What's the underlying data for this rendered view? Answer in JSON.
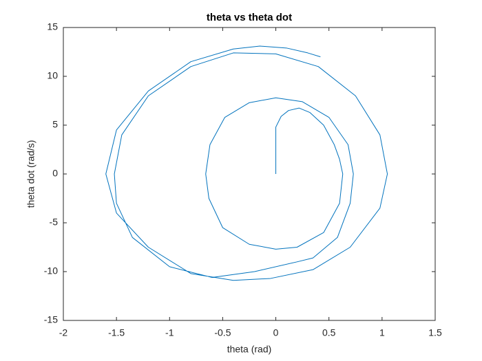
{
  "chart_data": {
    "type": "line",
    "title": "theta vs theta dot",
    "x_label": "theta (rad)",
    "y_label": "theta dot (rad/s)",
    "x": [
      0,
      0,
      0.05,
      0.12,
      0.22,
      0.32,
      0.45,
      0.55,
      0.6,
      0.63,
      0.6,
      0.45,
      0.2,
      0,
      -0.25,
      -0.5,
      -0.63,
      -0.66,
      -0.62,
      -0.48,
      -0.25,
      0,
      0.25,
      0.5,
      0.68,
      0.73,
      0.7,
      0.58,
      0.35,
      0.2,
      -0.2,
      -0.6,
      -1,
      -1.35,
      -1.5,
      -1.52,
      -1.45,
      -1.2,
      -0.8,
      -0.4,
      0,
      0.4,
      0.75,
      0.98,
      1.05,
      0.98,
      0.7,
      0.35,
      -0.05,
      -0.4,
      -0.8,
      -1.2,
      -1.5,
      -1.6,
      -1.5,
      -1.2,
      -0.8,
      -0.4,
      -0.15,
      0.1,
      0.3,
      0.42
    ],
    "series": [
      {
        "name": "theta dot",
        "color": "#0072bd",
        "values": [
          0,
          4.8,
          5.9,
          6.5,
          6.75,
          6.3,
          5,
          3,
          1.5,
          0,
          -3,
          -6,
          -7.5,
          -7.7,
          -7.2,
          -5.5,
          -2.5,
          0,
          3,
          5.8,
          7.3,
          7.8,
          7.4,
          5.8,
          3,
          0,
          -3,
          -6.5,
          -8.6,
          -9,
          -10,
          -10.6,
          -9.5,
          -6.5,
          -3,
          0,
          4,
          8,
          11,
          12.4,
          12.3,
          11,
          8,
          4,
          0,
          -3.5,
          -7.5,
          -9.8,
          -10.7,
          -10.9,
          -10.2,
          -7.5,
          -4,
          0,
          4.5,
          8.5,
          11.5,
          12.8,
          13.1,
          12.9,
          12.4,
          12
        ]
      }
    ],
    "xlim": [
      -2,
      1.5
    ],
    "ylim": [
      -15,
      15
    ],
    "xticks": [
      -2,
      -1.5,
      -1,
      -0.5,
      0,
      0.5,
      1,
      1.5
    ],
    "yticks": [
      -15,
      -10,
      -5,
      0,
      5,
      10,
      15
    ]
  }
}
